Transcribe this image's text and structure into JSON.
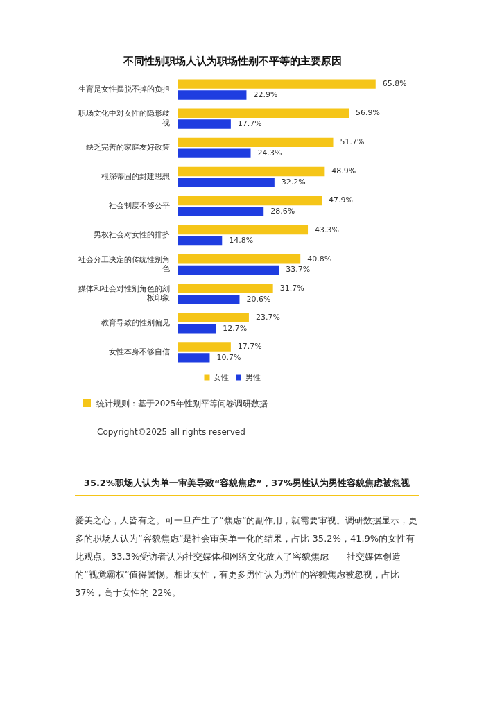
{
  "chart_data": {
    "type": "bar",
    "orientation": "horizontal",
    "relative": false,
    "title": "不同性别职场人认为职场性别不平等的主要原因",
    "categories": [
      "生育是女性摆脱不掉的负担",
      "职场文化中对女性的隐形歧视",
      "缺乏完善的家庭友好政策",
      "根深蒂固的封建思想",
      "社会制度不够公平",
      "男权社会对女性的排挤",
      "社会分工决定的传统性别角色",
      "媒体和社会对性别角色的刻板印象",
      "教育导致的性别偏见",
      "女性本身不够自信"
    ],
    "series": [
      {
        "name": "女性",
        "color": "#f5c518",
        "values": [
          65.8,
          56.9,
          51.7,
          48.9,
          47.9,
          43.3,
          40.8,
          31.7,
          23.7,
          17.7
        ],
        "value_labels": [
          "65.8%",
          "56.9%",
          "51.7%",
          "48.9%",
          "47.9%",
          "43.3%",
          "40.8%",
          "31.7%",
          "23.7%",
          "17.7%"
        ]
      },
      {
        "name": "男性",
        "color": "#1f3de0",
        "values": [
          22.9,
          17.7,
          24.3,
          32.2,
          28.6,
          14.8,
          33.7,
          20.6,
          12.7,
          10.7
        ],
        "value_labels": [
          "22.9%",
          "17.7%",
          "24.3%",
          "32.2%",
          "28.6%",
          "14.8%",
          "33.7%",
          "20.6%",
          "12.7%",
          "10.7%"
        ]
      }
    ],
    "legend": "bottom",
    "grid": false,
    "annotations": [
      "统计规则：基于2025年性别平等问卷调研数据",
      "Copyright©2025 all rights reserved",
      "35.2%职场人认为单一审美导致“容貌焦虑”，37%男性认为男性容貌焦虑被忽视",
      "爱美之心，人皆有之。可一旦产生了“焦虑”的副作用，就需要审视。调研数据显示，更多的职场人认为“容貌焦虑”是社会审美单一化的结果，占比 35.2%，41.9%的女性有此观点。33.3%受访者认为社交媒体和网络文化放大了容貌焦虑——社交媒体创造的“视觉霸权”值得警惕。相比女性，有更多男性认为男性的容貌焦虑被忽视，占比 37%，高于女性的 22%。"
    ]
  }
}
